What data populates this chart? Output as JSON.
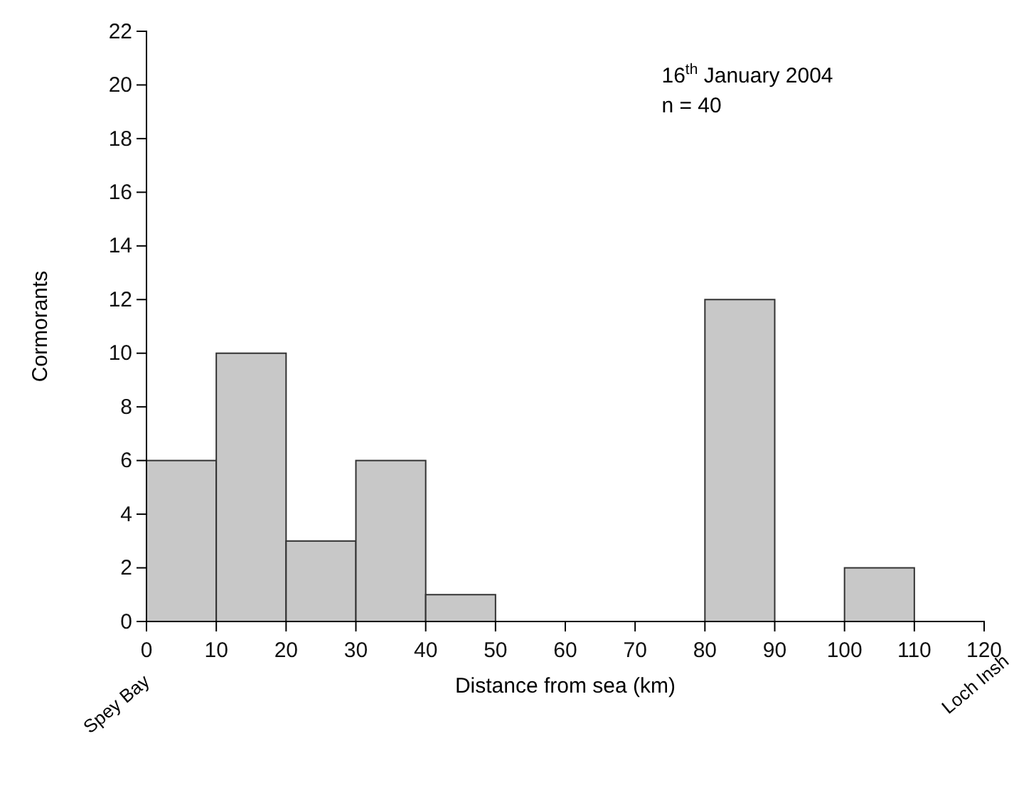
{
  "chart_data": {
    "type": "histogram",
    "xlabel": "Distance from sea (km)",
    "ylabel": "Cormorants",
    "bins": [
      0,
      10,
      20,
      30,
      40,
      50,
      60,
      70,
      80,
      90,
      100,
      110,
      120
    ],
    "values": [
      6,
      10,
      3,
      6,
      1,
      0,
      0,
      0,
      12,
      0,
      2,
      0
    ],
    "color": "#c8c8c8",
    "xlim": [
      0,
      120
    ],
    "xticks": [
      0,
      10,
      20,
      30,
      40,
      50,
      60,
      70,
      80,
      90,
      100,
      110,
      120
    ],
    "ylim": [
      0,
      22
    ],
    "yticks": [
      0,
      2,
      4,
      6,
      8,
      10,
      12,
      14,
      16,
      18,
      20,
      22
    ],
    "grid": false,
    "annotations": [
      "16$^{th}$ January 2004",
      "n = 40",
      "Spey Bay",
      "Loch Insh"
    ]
  }
}
